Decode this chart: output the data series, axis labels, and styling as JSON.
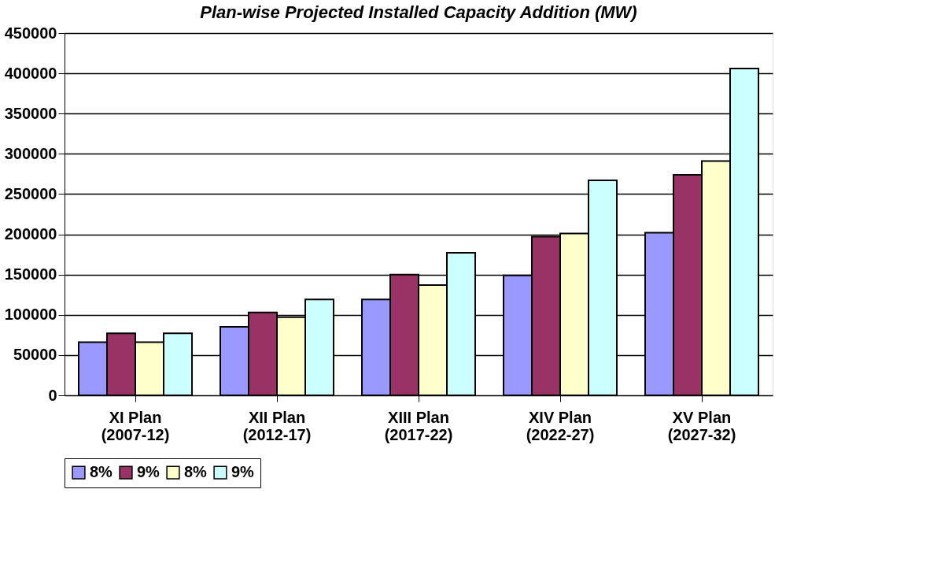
{
  "chart_data": {
    "type": "bar",
    "title": "Plan-wise Projected Installed Capacity Addition (MW)",
    "categories": [
      "XI Plan\n(2007-12)",
      "XII Plan\n(2012-17)",
      "XIII Plan\n(2017-22)",
      "XIV Plan\n(2022-27)",
      "XV Plan\n(2027-32)"
    ],
    "series": [
      {
        "name": "8%",
        "color": "#9999ff",
        "values": [
          66000,
          85000,
          119000,
          149000,
          202000
        ]
      },
      {
        "name": "9%",
        "color": "#993366",
        "values": [
          77000,
          103000,
          150000,
          197000,
          274000
        ]
      },
      {
        "name": "8%",
        "color": "#ffffcc",
        "values": [
          66000,
          97000,
          137000,
          201000,
          291000
        ]
      },
      {
        "name": "9%",
        "color": "#ccffff",
        "values": [
          77000,
          119000,
          177000,
          267000,
          406000
        ]
      }
    ],
    "ylim": [
      0,
      450000
    ],
    "yticks": [
      0,
      50000,
      100000,
      150000,
      200000,
      250000,
      300000,
      350000,
      400000,
      450000
    ],
    "grid": "y",
    "legend": "bottom"
  }
}
